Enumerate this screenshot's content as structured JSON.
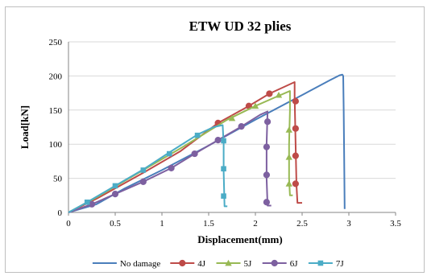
{
  "chart_data": {
    "type": "line",
    "title": "ETW UD 32 plies",
    "xlabel": "Displacement(mm)",
    "ylabel": "Load[kN]",
    "xlim": [
      0,
      3.5
    ],
    "ylim": [
      0,
      250
    ],
    "xticks": [
      "0",
      "0.5",
      "1",
      "1.5",
      "2",
      "2.5",
      "3",
      "3.5"
    ],
    "yticks": [
      "0",
      "50",
      "100",
      "150",
      "200",
      "250"
    ],
    "grid": "horizontal",
    "legend_position": "bottom",
    "series": [
      {
        "name": "No damage",
        "color": "#4a7ebb",
        "marker": "none",
        "points": [
          [
            0,
            0
          ],
          [
            0.3,
            12
          ],
          [
            0.6,
            35
          ],
          [
            1.0,
            62
          ],
          [
            1.5,
            98
          ],
          [
            2.0,
            136
          ],
          [
            2.5,
            172
          ],
          [
            2.8,
            194
          ],
          [
            2.9,
            201
          ],
          [
            2.93,
            202
          ],
          [
            2.94,
            200
          ],
          [
            2.945,
            150
          ],
          [
            2.95,
            80
          ],
          [
            2.955,
            5
          ]
        ],
        "markers": []
      },
      {
        "name": "4J",
        "color": "#be4b48",
        "marker": "circle",
        "points": [
          [
            0,
            0
          ],
          [
            0.3,
            20
          ],
          [
            0.8,
            58
          ],
          [
            1.2,
            90
          ],
          [
            1.6,
            131
          ],
          [
            1.93,
            156
          ],
          [
            2.15,
            174
          ],
          [
            2.42,
            191
          ],
          [
            2.42,
            170
          ],
          [
            2.43,
            100
          ],
          [
            2.44,
            40
          ],
          [
            2.45,
            14
          ],
          [
            2.5,
            14
          ]
        ],
        "markers": [
          [
            1.6,
            131
          ],
          [
            1.93,
            156
          ],
          [
            2.15,
            174
          ],
          [
            2.43,
            163
          ],
          [
            2.43,
            123
          ],
          [
            2.43,
            83
          ],
          [
            2.43,
            42
          ]
        ]
      },
      {
        "name": "5J",
        "color": "#98b954",
        "marker": "triangle",
        "points": [
          [
            0,
            0
          ],
          [
            0.3,
            22
          ],
          [
            0.8,
            62
          ],
          [
            1.2,
            94
          ],
          [
            1.7,
            136
          ],
          [
            2.0,
            156
          ],
          [
            2.2,
            168
          ],
          [
            2.37,
            178
          ],
          [
            2.37,
            150
          ],
          [
            2.36,
            100
          ],
          [
            2.36,
            50
          ],
          [
            2.37,
            25
          ],
          [
            2.4,
            25
          ]
        ],
        "markers": [
          [
            1.75,
            138
          ],
          [
            2.0,
            156
          ],
          [
            2.25,
            172
          ],
          [
            2.36,
            121
          ],
          [
            2.36,
            81
          ],
          [
            2.36,
            42
          ]
        ]
      },
      {
        "name": "6J",
        "color": "#7d60a0",
        "marker": "circle",
        "points": [
          [
            0,
            0
          ],
          [
            0.25,
            12
          ],
          [
            0.5,
            27
          ],
          [
            0.8,
            45
          ],
          [
            1.1,
            65
          ],
          [
            1.35,
            86
          ],
          [
            1.6,
            106
          ],
          [
            1.85,
            126
          ],
          [
            2.05,
            143
          ],
          [
            2.13,
            148
          ],
          [
            2.12,
            100
          ],
          [
            2.12,
            50
          ],
          [
            2.13,
            10
          ],
          [
            2.17,
            10
          ]
        ],
        "markers": [
          [
            0.25,
            12
          ],
          [
            0.5,
            27
          ],
          [
            0.8,
            45
          ],
          [
            1.1,
            65
          ],
          [
            1.35,
            86
          ],
          [
            1.6,
            106
          ],
          [
            1.85,
            126
          ],
          [
            2.13,
            133
          ],
          [
            2.12,
            96
          ],
          [
            2.12,
            55
          ],
          [
            2.12,
            15
          ]
        ]
      },
      {
        "name": "7J",
        "color": "#4bacc6",
        "marker": "square",
        "points": [
          [
            0,
            0
          ],
          [
            0.2,
            15
          ],
          [
            0.5,
            39
          ],
          [
            0.8,
            63
          ],
          [
            1.08,
            88
          ],
          [
            1.38,
            114
          ],
          [
            1.55,
            125
          ],
          [
            1.65,
            128
          ],
          [
            1.66,
            100
          ],
          [
            1.66,
            60
          ],
          [
            1.67,
            9
          ],
          [
            1.7,
            9
          ]
        ],
        "markers": [
          [
            0.2,
            15
          ],
          [
            0.5,
            39
          ],
          [
            0.8,
            62
          ],
          [
            1.08,
            86
          ],
          [
            1.38,
            113
          ],
          [
            1.66,
            105
          ],
          [
            1.66,
            64
          ],
          [
            1.66,
            24
          ]
        ]
      }
    ]
  }
}
